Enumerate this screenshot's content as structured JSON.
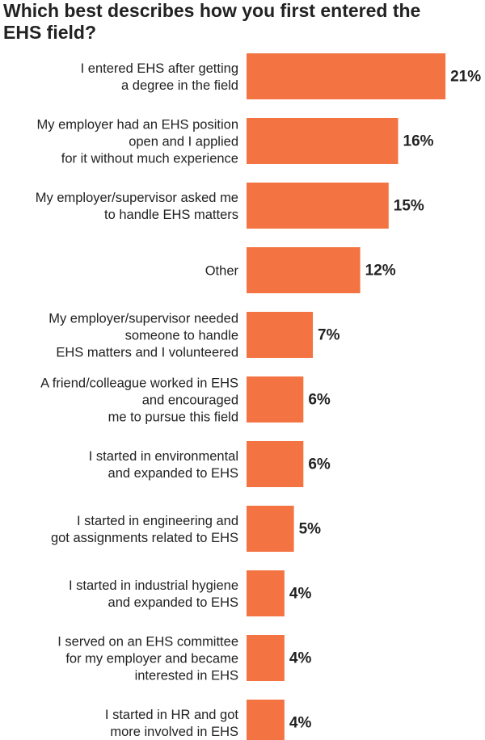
{
  "chart_data": {
    "type": "barh",
    "title": "Which best describes how you first entered the EHS field?",
    "categories": [
      "I entered EHS after getting\na degree in the field",
      "My employer had an EHS position\nopen and I applied\nfor it without much experience",
      "My employer/supervisor asked me\nto handle EHS matters",
      "Other",
      "My employer/supervisor needed\nsomeone to handle\nEHS matters and I volunteered",
      "A friend/colleague worked in EHS\nand encouraged\nme to pursue this field",
      "I started in environmental\nand expanded to EHS",
      "I started in engineering and\ngot assignments related to EHS",
      "I started in industrial hygiene\nand expanded to EHS",
      "I served on an EHS committee\nfor my employer and became\ninterested in EHS",
      "I started in HR and got\nmore involved in EHS"
    ],
    "values": [
      21,
      16,
      15,
      12,
      7,
      6,
      6,
      5,
      4,
      4,
      4
    ],
    "value_labels": [
      "21%",
      "16%",
      "15%",
      "12%",
      "7%",
      "6%",
      "6%",
      "5%",
      "4%",
      "4%",
      "4%"
    ],
    "color": "#f37442"
  }
}
